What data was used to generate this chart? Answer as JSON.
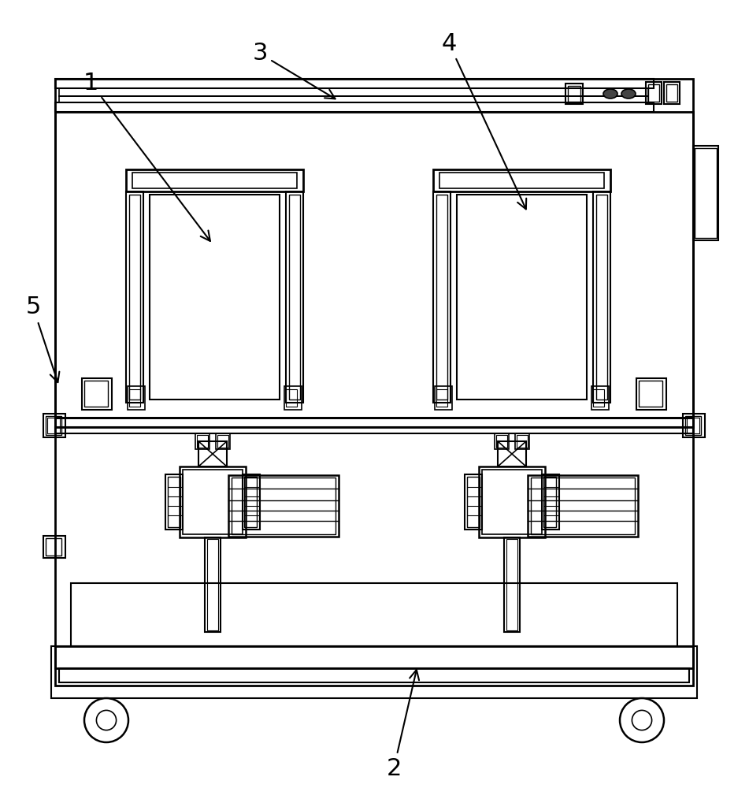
{
  "bg_color": "#ffffff",
  "fig_width": 9.51,
  "fig_height": 10.0
}
